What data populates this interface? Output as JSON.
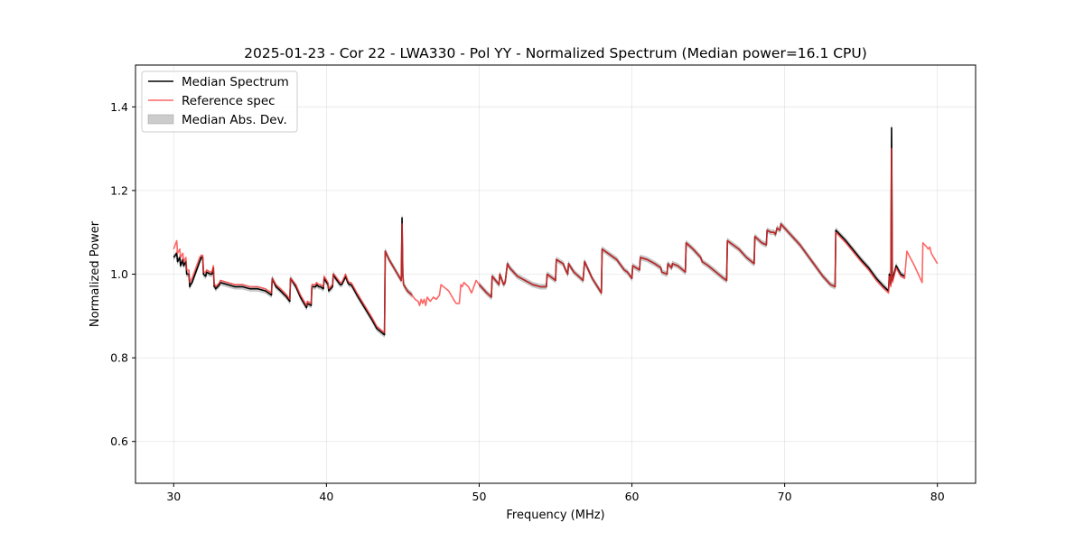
{
  "chart_data": {
    "type": "line",
    "title": "2025-01-23 - Cor 22 - LWA330 - Pol YY - Normalized Spectrum (Median power=16.1 CPU)",
    "xlabel": "Frequency (MHz)",
    "ylabel": "Normalized Power",
    "xlim": [
      27.5,
      82.5
    ],
    "ylim": [
      0.5,
      1.5
    ],
    "xticks": [
      30,
      40,
      50,
      60,
      70,
      80
    ],
    "yticks": [
      0.6,
      0.8,
      1.0,
      1.2,
      1.4
    ],
    "xtick_labels": [
      "30",
      "40",
      "50",
      "60",
      "70",
      "80"
    ],
    "ytick_labels": [
      "0.6",
      "0.8",
      "1.0",
      "1.2",
      "1.4"
    ],
    "grid": true,
    "legend_position": "top-left",
    "legend": [
      "Median Spectrum",
      "Reference spec",
      "Median Abs. Dev."
    ],
    "colors": {
      "median": "#000000",
      "reference": "#ff3333",
      "mad": "#999999"
    },
    "mad_half_width": 0.006,
    "series": [
      {
        "name": "Median Spectrum",
        "segments": [
          {
            "x": [
              30.0,
              30.2,
              30.25,
              30.4,
              30.45,
              30.6,
              30.65,
              30.8,
              30.85,
              31.0,
              31.05,
              31.1,
              31.2,
              31.3,
              31.5,
              31.7,
              31.8,
              31.9,
              31.95,
              32.1,
              32.15,
              32.4,
              32.5,
              32.6,
              32.65,
              32.7,
              32.75,
              33.0,
              33.05,
              34.0,
              34.5,
              35.0,
              35.5,
              36.0,
              36.4,
              36.45,
              36.7,
              37.0,
              37.4,
              37.6,
              37.65,
              38.0,
              38.3,
              38.7,
              38.75,
              39.0,
              39.05,
              39.3,
              39.35,
              39.5,
              39.6,
              39.8,
              39.85,
              40.1,
              40.15,
              40.4,
              40.45,
              40.6,
              40.9,
              41.0,
              41.2,
              41.25,
              41.4,
              41.5,
              41.6,
              41.7,
              42.0,
              42.5,
              43.0,
              43.3,
              43.8,
              43.85,
              44.1,
              44.5,
              44.9,
              44.95,
              45.0,
              45.05,
              45.3,
              45.6
            ],
            "y": [
              1.04,
              1.05,
              1.03,
              1.04,
              1.02,
              1.035,
              1.02,
              1.03,
              1.0,
              1.0,
              0.97,
              0.975,
              0.98,
              0.99,
              1.01,
              1.03,
              1.04,
              1.04,
              1.0,
              0.995,
              1.005,
              1.0,
              1.0,
              1.015,
              0.97,
              0.97,
              0.965,
              0.975,
              0.98,
              0.97,
              0.97,
              0.965,
              0.965,
              0.96,
              0.95,
              0.99,
              0.97,
              0.96,
              0.945,
              0.935,
              0.99,
              0.97,
              0.945,
              0.92,
              0.93,
              0.925,
              0.97,
              0.97,
              0.975,
              0.97,
              0.97,
              0.965,
              0.99,
              0.975,
              0.96,
              0.97,
              1.0,
              0.99,
              0.975,
              0.975,
              0.99,
              0.995,
              0.98,
              0.975,
              0.975,
              0.97,
              0.95,
              0.92,
              0.89,
              0.87,
              0.855,
              1.055,
              1.035,
              1.01,
              0.985,
              1.135,
              1.0,
              0.975,
              0.96,
              0.95
            ]
          },
          {
            "x": [
              50.0,
              50.5,
              50.8,
              50.85,
              51.3,
              51.35,
              51.6,
              51.7,
              51.85,
              52.0,
              52.5,
              53.0,
              53.5,
              54.0,
              54.3,
              54.4,
              54.45,
              55.0,
              55.05,
              55.5,
              55.6,
              55.8,
              55.85,
              56.2,
              56.5,
              56.8,
              56.9,
              57.4,
              58.0,
              58.05,
              59.0,
              59.5,
              59.7,
              60.0,
              60.05,
              60.5,
              60.55,
              61.0,
              61.5,
              61.9,
              61.95,
              62.3,
              62.35,
              62.6,
              62.65,
              63.0,
              63.5,
              63.55,
              64.0,
              64.5,
              64.6,
              65.0,
              65.5,
              66.0,
              66.2,
              66.25,
              67.0,
              67.5,
              68.0,
              68.05,
              68.5,
              68.8,
              68.85,
              69.1,
              69.3,
              69.4,
              69.5,
              69.7,
              69.75,
              70.0,
              71.0,
              72.0,
              72.5,
              73.0,
              73.3,
              73.35,
              74.0,
              75.0,
              75.5,
              76.0,
              76.5,
              76.8,
              76.85,
              76.95,
              77.0,
              77.05,
              77.3,
              77.6,
              77.85
            ],
            "y": [
              0.975,
              0.955,
              0.945,
              0.995,
              0.975,
              1.0,
              0.975,
              0.98,
              1.025,
              1.015,
              0.995,
              0.985,
              0.975,
              0.97,
              0.97,
              0.97,
              1.0,
              0.985,
              1.035,
              1.025,
              1.015,
              1.0,
              1.025,
              1.005,
              0.995,
              0.985,
              1.03,
              0.99,
              0.955,
              1.06,
              1.035,
              1.01,
              1.005,
              0.99,
              1.02,
              1.01,
              1.04,
              1.035,
              1.025,
              1.015,
              1.005,
              1.0,
              1.025,
              1.015,
              1.025,
              1.02,
              1.005,
              1.075,
              1.06,
              1.04,
              1.03,
              1.02,
              1.005,
              0.99,
              0.985,
              1.08,
              1.06,
              1.04,
              1.025,
              1.09,
              1.075,
              1.07,
              1.105,
              1.1,
              1.1,
              1.095,
              1.11,
              1.105,
              1.12,
              1.11,
              1.07,
              1.02,
              0.995,
              0.975,
              0.97,
              1.105,
              1.08,
              1.035,
              1.015,
              0.99,
              0.97,
              0.96,
              1.0,
              0.975,
              1.35,
              0.985,
              1.02,
              1.0,
              0.995
            ]
          }
        ]
      },
      {
        "name": "Reference spec",
        "segments": [
          {
            "x": [
              30.0,
              30.2,
              30.25,
              30.4,
              30.45,
              30.6,
              30.65,
              30.8,
              30.85,
              31.0,
              31.05,
              31.1,
              31.2,
              31.3,
              31.5,
              31.7,
              31.8,
              31.9,
              31.95,
              32.1,
              32.15,
              32.4,
              32.5,
              32.6,
              32.65,
              32.7,
              32.75,
              33.0,
              33.05,
              34.0,
              34.5,
              35.0,
              35.5,
              36.0,
              36.4,
              36.45,
              36.7,
              37.0,
              37.4,
              37.6,
              37.65,
              38.0,
              38.3,
              38.7,
              38.75,
              39.0,
              39.05,
              39.3,
              39.35,
              39.5,
              39.6,
              39.8,
              39.85,
              40.1,
              40.15,
              40.4,
              40.45,
              40.6,
              40.9,
              41.0,
              41.2,
              41.25,
              41.4,
              41.5,
              41.6,
              41.7,
              42.0,
              42.5,
              43.0,
              43.3,
              43.8,
              43.85,
              44.1,
              44.5,
              44.9,
              44.95,
              45.0,
              45.05,
              45.3,
              45.6,
              45.8,
              46.0,
              46.1,
              46.2,
              46.3,
              46.4,
              46.5,
              46.6,
              46.8,
              47.0,
              47.2,
              47.4,
              47.5,
              48.0,
              48.4,
              48.5,
              48.7,
              48.8,
              48.9,
              49.0,
              49.3,
              49.5,
              49.8,
              50.0,
              50.5,
              50.8,
              50.85,
              51.3,
              51.35,
              51.6,
              51.7,
              51.85,
              52.0,
              52.5,
              53.0,
              53.5,
              54.0,
              54.3,
              54.4,
              54.45,
              55.0,
              55.05,
              55.5,
              55.6,
              55.8,
              55.85,
              56.2,
              56.5,
              56.8,
              56.9,
              57.4,
              58.0,
              58.05,
              59.0,
              59.5,
              59.7,
              60.0,
              60.05,
              60.5,
              60.55,
              61.0,
              61.5,
              61.9,
              61.95,
              62.3,
              62.35,
              62.6,
              62.65,
              63.0,
              63.5,
              63.55,
              64.0,
              64.5,
              64.6,
              65.0,
              65.5,
              66.0,
              66.2,
              66.25,
              67.0,
              67.5,
              68.0,
              68.05,
              68.5,
              68.8,
              68.85,
              69.1,
              69.3,
              69.4,
              69.5,
              69.7,
              69.75,
              70.0,
              71.0,
              72.0,
              72.5,
              73.0,
              73.3,
              73.35,
              74.0,
              75.0,
              75.5,
              76.0,
              76.5,
              76.8,
              76.85,
              76.95,
              77.0,
              77.05,
              77.3,
              77.6,
              77.85,
              78.0,
              78.5,
              79.0,
              79.05,
              79.3,
              79.4,
              79.5,
              79.6,
              80.0
            ],
            "y": [
              1.06,
              1.08,
              1.05,
              1.06,
              1.04,
              1.05,
              1.03,
              1.04,
              1.01,
              1.01,
              0.98,
              0.985,
              0.99,
              1.0,
              1.02,
              1.04,
              1.045,
              1.045,
              1.005,
              1.005,
              1.01,
              1.005,
              1.005,
              1.02,
              0.975,
              0.975,
              0.97,
              0.98,
              0.985,
              0.975,
              0.975,
              0.97,
              0.97,
              0.965,
              0.955,
              0.99,
              0.975,
              0.965,
              0.95,
              0.94,
              0.99,
              0.975,
              0.95,
              0.925,
              0.935,
              0.93,
              0.975,
              0.975,
              0.98,
              0.975,
              0.975,
              0.97,
              0.995,
              0.98,
              0.965,
              0.975,
              1.0,
              0.995,
              0.98,
              0.98,
              0.995,
              1.0,
              0.985,
              0.98,
              0.98,
              0.975,
              0.955,
              0.925,
              0.895,
              0.875,
              0.86,
              1.055,
              1.035,
              1.01,
              0.985,
              1.12,
              1.0,
              0.975,
              0.96,
              0.95,
              0.94,
              0.935,
              0.925,
              0.94,
              0.93,
              0.94,
              0.925,
              0.945,
              0.935,
              0.945,
              0.94,
              0.95,
              0.975,
              0.96,
              0.935,
              0.93,
              0.93,
              0.975,
              0.97,
              0.98,
              0.97,
              0.955,
              0.985,
              0.975,
              0.955,
              0.945,
              0.995,
              0.975,
              1.0,
              0.975,
              0.98,
              1.025,
              1.015,
              0.995,
              0.985,
              0.975,
              0.97,
              0.97,
              0.97,
              1.0,
              0.985,
              1.035,
              1.025,
              1.015,
              1.0,
              1.025,
              1.005,
              0.995,
              0.985,
              1.03,
              0.99,
              0.955,
              1.06,
              1.035,
              1.01,
              1.005,
              0.99,
              1.02,
              1.01,
              1.04,
              1.035,
              1.025,
              1.015,
              1.005,
              1.0,
              1.025,
              1.015,
              1.025,
              1.02,
              1.005,
              1.075,
              1.06,
              1.04,
              1.03,
              1.02,
              1.005,
              0.99,
              0.985,
              1.08,
              1.06,
              1.04,
              1.025,
              1.09,
              1.075,
              1.07,
              1.105,
              1.1,
              1.1,
              1.095,
              1.11,
              1.105,
              1.12,
              1.11,
              1.07,
              1.02,
              0.995,
              0.975,
              0.97,
              1.1,
              1.075,
              1.03,
              1.01,
              0.985,
              0.965,
              0.955,
              0.995,
              0.97,
              1.3,
              0.98,
              1.015,
              0.995,
              0.99,
              1.055,
              1.02,
              0.98,
              1.075,
              1.065,
              1.06,
              1.065,
              1.05,
              1.025
            ]
          }
        ]
      }
    ]
  }
}
